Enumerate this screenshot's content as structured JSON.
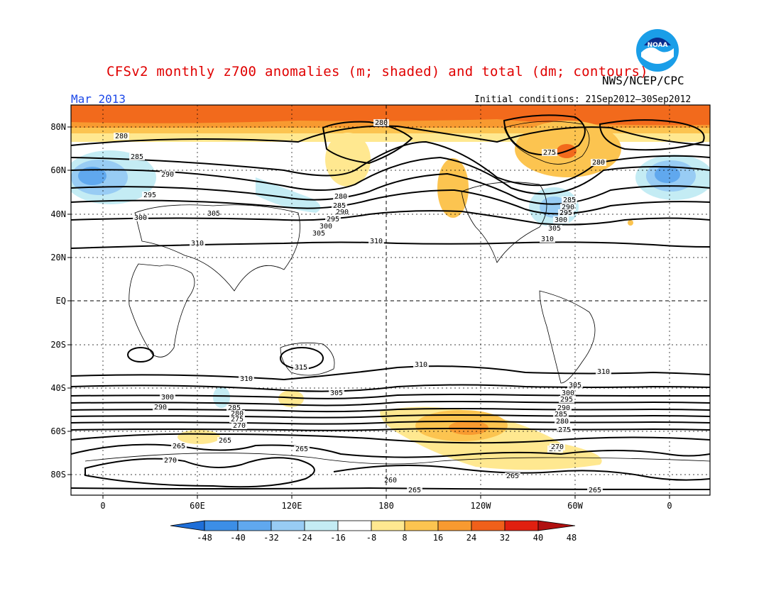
{
  "header": {
    "title": "CFSv2 monthly z700 anomalies (m; shaded) and total (dm; contours)",
    "agency": "NWS/NCEP/CPC",
    "month": "Mar 2013",
    "initial_conditions": "Initial conditions: 21Sep2012–30Sep2012"
  },
  "logo": {
    "text": "NOAA",
    "colors": {
      "outer": "#1a9ee8",
      "inner": "#0a2c8c"
    }
  },
  "axes": {
    "y_ticks": [
      "80N",
      "60N",
      "40N",
      "20N",
      "EQ",
      "20S",
      "40S",
      "60S",
      "80S"
    ],
    "x_ticks": [
      "0",
      "60E",
      "120E",
      "180",
      "120W",
      "60W",
      "0"
    ]
  },
  "colorbar": {
    "labels": [
      "-48",
      "-40",
      "-32",
      "-24",
      "-16",
      "-8",
      "8",
      "16",
      "24",
      "32",
      "40",
      "48"
    ],
    "colors": [
      "#1e6ed8",
      "#3c8ee6",
      "#60a8ee",
      "#98ccf4",
      "#c4ecf4",
      "#ffffff",
      "#ffe890",
      "#fcc450",
      "#f89a30",
      "#f0601a",
      "#e02010",
      "#b01010"
    ]
  },
  "contour_labels": {
    "north": [
      "280",
      "280",
      "285",
      "290",
      "295",
      "300",
      "305",
      "310",
      "280",
      "285",
      "290",
      "295",
      "300",
      "305",
      "310",
      "275",
      "280",
      "285",
      "290",
      "295",
      "300",
      "305",
      "310"
    ],
    "south": [
      "315",
      "310",
      "310",
      "310",
      "305",
      "300",
      "290",
      "285",
      "280",
      "275",
      "270",
      "265",
      "265",
      "265",
      "270",
      "270",
      "260",
      "265",
      "265",
      "265",
      "305",
      "300",
      "295",
      "290",
      "285",
      "280",
      "275",
      "270"
    ]
  }
}
